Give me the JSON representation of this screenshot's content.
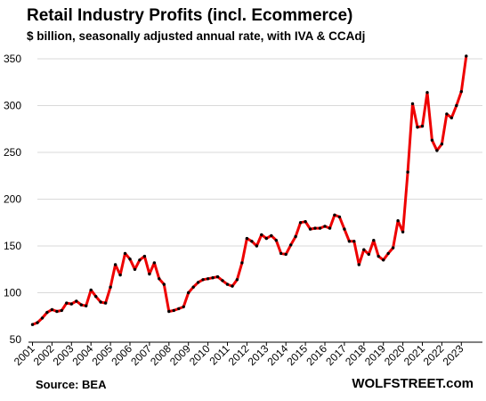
{
  "header": {
    "title": "Retail Industry Profits (incl. Ecommerce)",
    "subtitle": "$ billion, seasonally adjusted annual rate, with IVA & CCAdj"
  },
  "footer": {
    "source": "Source: BEA",
    "credit": "WOLFSTREET.com"
  },
  "colors": {
    "line": "#ee0000",
    "marker": "#000000",
    "grid": "#d9d9d9"
  },
  "chart_data": {
    "type": "line",
    "title": "Retail Industry Profits (incl. Ecommerce)",
    "subtitle": "$ billion, seasonally adjusted annual rate, with IVA & CCAdj",
    "xlabel": "",
    "ylabel": "",
    "ylim": [
      50,
      360
    ],
    "y_ticks": [
      50,
      100,
      150,
      200,
      250,
      300,
      350
    ],
    "x_ticks": [
      "2001",
      "2002",
      "2003",
      "2004",
      "2005",
      "2006",
      "2007",
      "2008",
      "2009",
      "2010",
      "2011",
      "2012",
      "2013",
      "2014",
      "2015",
      "2016",
      "2017",
      "2018",
      "2019",
      "2020",
      "2021",
      "2022",
      "2023"
    ],
    "grid": "horizontal",
    "series": [
      {
        "frequency": "quarterly",
        "start": "2001-Q1",
        "values": [
          66,
          68,
          73,
          79,
          82,
          80,
          81,
          89,
          88,
          91,
          87,
          86,
          103,
          96,
          90,
          89,
          106,
          130,
          119,
          142,
          136,
          125,
          135,
          139,
          120,
          132,
          115,
          109,
          80,
          81,
          83,
          85,
          100,
          106,
          111,
          114,
          115,
          116,
          117,
          113,
          109,
          107,
          114,
          132,
          158,
          155,
          150,
          162,
          158,
          161,
          156,
          142,
          141,
          151,
          160,
          175,
          176,
          168,
          169,
          169,
          171,
          169,
          183,
          181,
          168,
          155,
          155,
          130,
          146,
          141,
          156,
          139,
          135,
          142,
          148,
          177,
          165,
          229,
          302,
          277,
          278,
          314,
          263,
          252,
          259,
          291,
          287,
          300,
          315,
          353
        ]
      }
    ]
  }
}
